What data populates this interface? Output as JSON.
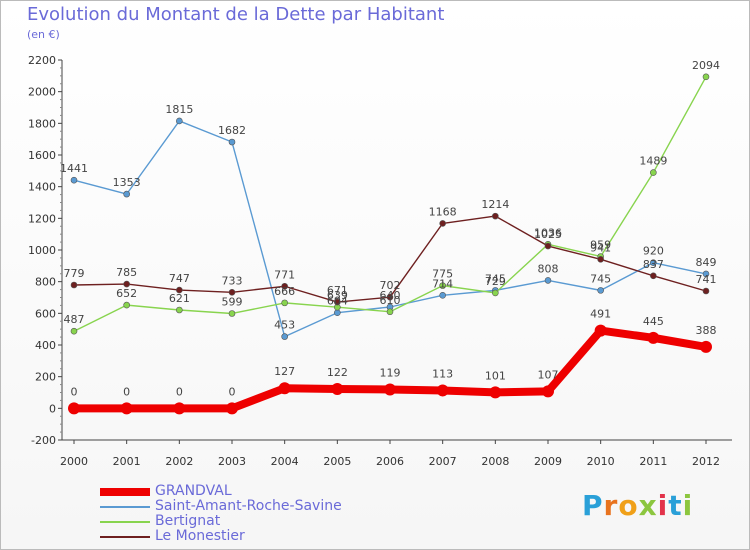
{
  "header": {
    "title": "Evolution du Montant de la Dette par Habitant",
    "subtitle": "(en €)"
  },
  "logo": {
    "text": "Proxiti",
    "letters": [
      {
        "ch": "P",
        "color": "#2aa0d8"
      },
      {
        "ch": "r",
        "color": "#e8731e"
      },
      {
        "ch": "o",
        "color": "#f0a018"
      },
      {
        "ch": "x",
        "color": "#8cc63f"
      },
      {
        "ch": "i",
        "color": "#e2334a"
      },
      {
        "ch": "t",
        "color": "#2aa0d8"
      },
      {
        "ch": "i",
        "color": "#8cc63f"
      }
    ]
  },
  "chart_data": {
    "type": "line",
    "title": "Evolution du Montant de la Dette par Habitant",
    "subtitle": "(en €)",
    "x": [
      "2000",
      "2001",
      "2002",
      "2003",
      "2004",
      "2005",
      "2006",
      "2007",
      "2008",
      "2009",
      "2010",
      "2011",
      "2012"
    ],
    "ylim": [
      -200,
      2200
    ],
    "yticks": [
      -200,
      0,
      200,
      400,
      600,
      800,
      1000,
      1200,
      1400,
      1600,
      1800,
      2000,
      2200
    ],
    "grid": false,
    "legend_position": "bottom-left",
    "series": [
      {
        "name": "GRANDVAL",
        "color": "#ee0000",
        "bold": true,
        "values": [
          0,
          0,
          0,
          0,
          127,
          122,
          119,
          113,
          101,
          107,
          491,
          445,
          388
        ]
      },
      {
        "name": "Saint-Amant-Roche-Savine",
        "color": "#5a9ad2",
        "bold": false,
        "values": [
          1441,
          1353,
          1815,
          1682,
          453,
          604,
          640,
          714,
          745,
          808,
          745,
          920,
          849
        ]
      },
      {
        "name": "Bertignat",
        "color": "#88d44e",
        "bold": false,
        "values": [
          487,
          652,
          621,
          599,
          666,
          639,
          610,
          775,
          729,
          1036,
          959,
          1489,
          2094
        ]
      },
      {
        "name": "Le Monestier",
        "color": "#6e2020",
        "bold": false,
        "values": [
          779,
          785,
          747,
          733,
          771,
          671,
          702,
          1168,
          1214,
          1025,
          941,
          837,
          741
        ]
      }
    ]
  }
}
